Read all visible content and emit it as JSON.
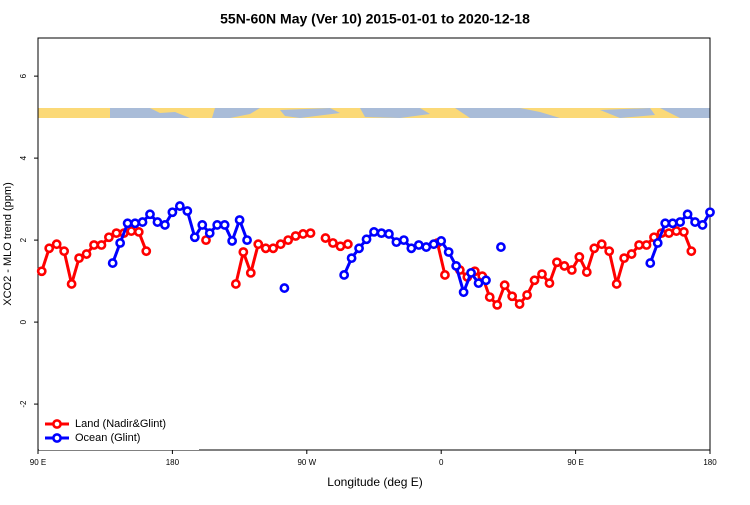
{
  "chart_data": {
    "type": "line",
    "title": "55N-60N May (Ver 10)   2015-01-01 to 2020-12-18",
    "x_label": "Longitude (deg E)",
    "y_label": "XCO2 - MLO trend (ppm)",
    "xlim": [
      90,
      540
    ],
    "ylim": [
      -3.12,
      6.93
    ],
    "xticks": [
      {
        "value": 90,
        "label": "90 E"
      },
      180,
      {
        "value": 270,
        "label": "90 W"
      },
      {
        "value": 360,
        "label": "0"
      },
      {
        "value": 450,
        "label": "90 E"
      },
      {
        "value": 540,
        "label": "180"
      }
    ],
    "yticks": [
      -2,
      0,
      2,
      4,
      6
    ],
    "legend": "bottomleft",
    "series": [
      {
        "name": "Land (Nadir&Glint)",
        "color": "#ff0000",
        "x": [
          92.5,
          97.5,
          102.5,
          107.5,
          112.5,
          117.5,
          122.5,
          127.5,
          132.5,
          137.5,
          142.5,
          147.5,
          152.5,
          157.5,
          162.5,
          167.5,
          202.5,
          212.5,
          222.5,
          227.5,
          232.5,
          237.5,
          242.5,
          247.5,
          252.5,
          257.5,
          262.5,
          267.5,
          272.5,
          277.5,
          282.5,
          287.5,
          292.5,
          297.5,
          302.5,
          357.5,
          362.5,
          367.5,
          372.5,
          377.5,
          382.5,
          387.5,
          392.5,
          397.5,
          402.5,
          407.5,
          412.5,
          417.5,
          422.5,
          427.5,
          432.5,
          437.5,
          442.5,
          447.5,
          452.5,
          457.5,
          462.5,
          467.5,
          472.5,
          477.5,
          482.5,
          487.5,
          492.5,
          497.5,
          502.5,
          507.5,
          512.5,
          517.5,
          522.5,
          527.5
        ],
        "values": [
          1.24,
          1.8,
          1.9,
          1.73,
          0.93,
          1.56,
          1.66,
          1.88,
          1.88,
          2.07,
          2.17,
          2.17,
          2.22,
          2.2,
          1.73,
          null,
          2.0,
          null,
          0.93,
          1.71,
          1.2,
          1.9,
          1.8,
          1.8,
          1.9,
          2.0,
          2.1,
          2.15,
          2.17,
          null,
          2.05,
          1.93,
          1.85,
          1.9,
          null,
          1.93,
          1.15,
          null,
          1.27,
          1.1,
          1.24,
          1.12,
          0.61,
          0.42,
          0.9,
          0.63,
          0.44,
          0.66,
          1.02,
          1.17,
          0.95,
          1.46,
          1.37,
          1.27,
          1.59,
          1.22,
          1.8,
          1.9,
          1.73,
          0.93,
          1.56,
          1.66,
          1.88,
          1.88,
          2.07,
          2.17,
          2.17,
          2.22,
          2.2,
          1.73
        ]
      },
      {
        "name": "Ocean (Glint)",
        "color": "#0000ff",
        "x": [
          140,
          145,
          150,
          155,
          160,
          165,
          170,
          175,
          180,
          185,
          190,
          195,
          200,
          205,
          210,
          215,
          220,
          225,
          230,
          235,
          255,
          260,
          295,
          300,
          305,
          310,
          315,
          320,
          325,
          330,
          335,
          340,
          345,
          350,
          355,
          360,
          365,
          370,
          375,
          380,
          385,
          390,
          395,
          400,
          405,
          500,
          505,
          510,
          515,
          520,
          525,
          530,
          535,
          540
        ],
        "values": [
          1.44,
          1.93,
          2.41,
          2.41,
          2.44,
          2.63,
          2.44,
          2.37,
          2.68,
          2.83,
          2.71,
          2.07,
          2.37,
          2.17,
          2.37,
          2.37,
          1.98,
          2.49,
          2.0,
          null,
          0.83,
          null,
          1.15,
          1.56,
          1.8,
          2.02,
          2.2,
          2.17,
          2.15,
          1.95,
          2.0,
          1.8,
          1.88,
          1.83,
          1.9,
          1.98,
          1.71,
          1.37,
          0.73,
          1.2,
          0.95,
          1.02,
          null,
          1.83,
          null,
          1.44,
          1.93,
          2.41,
          2.41,
          2.44,
          2.63,
          2.44,
          2.37,
          2.68
        ]
      }
    ]
  }
}
